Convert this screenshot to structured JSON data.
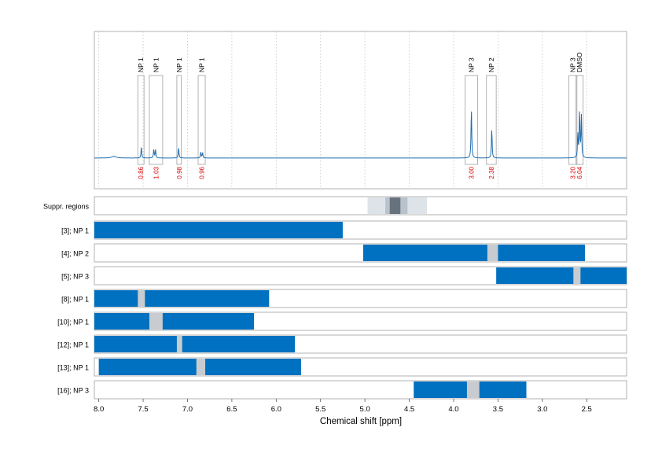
{
  "chart_data": {
    "type": "line",
    "xlabel": "Chemical shift [ppm]",
    "xlim": [
      8.05,
      2.05
    ],
    "x_ticks": [
      "8.0",
      "7.5",
      "7.0",
      "6.5",
      "6.0",
      "5.5",
      "5.0",
      "4.5",
      "4.0",
      "3.5",
      "3.0",
      "2.5"
    ],
    "spectrum": {
      "baseline": 0.02,
      "peaks": [
        {
          "x": 7.83,
          "h": 0.02
        },
        {
          "x": 7.52,
          "h": 0.14
        },
        {
          "x": 7.38,
          "h": 0.11
        },
        {
          "x": 7.36,
          "h": 0.1
        },
        {
          "x": 7.1,
          "h": 0.13
        },
        {
          "x": 6.85,
          "h": 0.07
        },
        {
          "x": 6.83,
          "h": 0.07
        },
        {
          "x": 3.8,
          "h": 0.62
        },
        {
          "x": 3.57,
          "h": 0.37
        },
        {
          "x": 2.6,
          "h": 0.3
        },
        {
          "x": 2.58,
          "h": 0.58
        },
        {
          "x": 2.56,
          "h": 0.5
        }
      ]
    },
    "annotations": [
      {
        "label": "NP 1",
        "value": "0.86",
        "x_left": 7.56,
        "x_right": 7.49
      },
      {
        "label": "NP 1",
        "value": "1.03",
        "x_left": 7.43,
        "x_right": 7.28
      },
      {
        "label": "NP 1",
        "value": "0.98",
        "x_left": 7.12,
        "x_right": 7.07
      },
      {
        "label": "NP 1",
        "value": "0.96",
        "x_left": 6.88,
        "x_right": 6.8
      },
      {
        "label": "NP 3",
        "value": "3.00",
        "x_left": 3.87,
        "x_right": 3.73
      },
      {
        "label": "NP 2",
        "value": "2.38",
        "x_left": 3.63,
        "x_right": 3.52
      },
      {
        "label": "NP 3",
        "value": "3.20",
        "x_left": 2.7,
        "x_right": 2.61
      },
      {
        "label": "DMSO",
        "value": "6.04",
        "x_left": 2.62,
        "x_right": 2.54
      }
    ],
    "track_labels": [
      "Suppr. regions",
      "[3]; NP 1",
      "[4]; NP 2",
      "[5]; NP 3",
      "[8]; NP 1",
      "[10]; NP 1",
      "[12]; NP 1",
      "[13]; NP 1",
      "[16]; NP 3"
    ],
    "suppressed_regions": [
      {
        "start": 4.97,
        "end": 4.3,
        "level": "light"
      },
      {
        "start": 4.77,
        "end": 4.52,
        "level": "medium"
      },
      {
        "start": 4.72,
        "end": 4.6,
        "level": "dark"
      }
    ],
    "ranges": [
      {
        "segments": [
          [
            8.05,
            5.25
          ]
        ],
        "gaps": []
      },
      {
        "segments": [
          [
            5.02,
            2.52
          ]
        ],
        "gaps": [
          [
            3.62,
            3.5
          ]
        ]
      },
      {
        "segments": [
          [
            3.52,
            2.05
          ]
        ],
        "gaps": [
          [
            2.65,
            2.57
          ]
        ]
      },
      {
        "segments": [
          [
            8.05,
            6.08
          ]
        ],
        "gaps": [
          [
            7.56,
            7.48
          ]
        ]
      },
      {
        "segments": [
          [
            8.05,
            6.25
          ]
        ],
        "gaps": [
          [
            7.43,
            7.28
          ]
        ]
      },
      {
        "segments": [
          [
            8.05,
            5.79
          ]
        ],
        "gaps": [
          [
            7.12,
            7.06
          ]
        ]
      },
      {
        "segments": [
          [
            8.0,
            5.72
          ]
        ],
        "gaps": [
          [
            6.9,
            6.8
          ]
        ]
      },
      {
        "segments": [
          [
            4.45,
            3.18
          ]
        ],
        "gaps": [
          [
            3.85,
            3.71
          ]
        ]
      }
    ],
    "colors": {
      "spectrum": "#1f6db0",
      "bar": "#0070c0",
      "gap": "#c8ccd0",
      "integral": "#e00000",
      "frame": "#b0b0b0",
      "supp_light": "#dde3e8",
      "supp_medium": "#b8c2cb",
      "supp_dark": "#66727e"
    },
    "grid": "vertical dotted"
  }
}
